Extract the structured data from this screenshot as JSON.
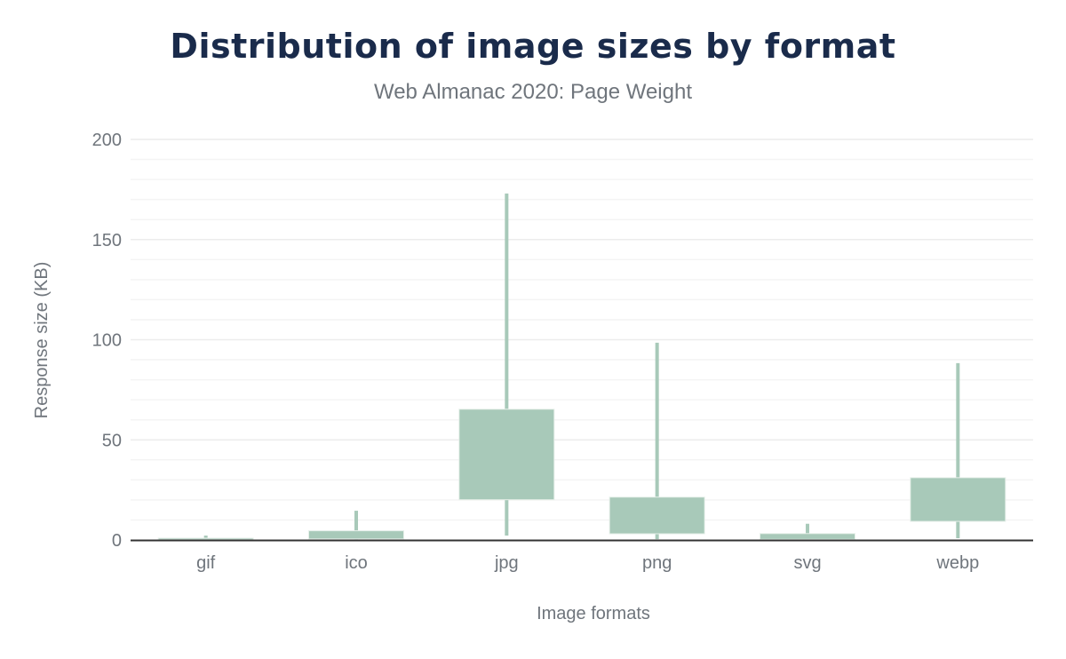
{
  "chart_data": {
    "type": "box",
    "title": "Distribution of image sizes by format",
    "subtitle": "Web Almanac 2020: Page Weight",
    "xlabel": "Image formats",
    "ylabel": "Response size (KB)",
    "ylim": [
      0,
      200
    ],
    "yticks": [
      "0",
      "50",
      "100",
      "150",
      "200"
    ],
    "grid": true,
    "color": "#a8c9b9",
    "categories": [
      "gif",
      "ico",
      "jpg",
      "png",
      "svg",
      "webp"
    ],
    "series": [
      {
        "category": "gif",
        "low": 0.1,
        "q1": 0.1,
        "q3": 0.9,
        "high": 2.2
      },
      {
        "category": "ico",
        "low": 0.3,
        "q1": 0.5,
        "q3": 4.6,
        "high": 14.6
      },
      {
        "category": "jpg",
        "low": 2.2,
        "q1": 20.1,
        "q3": 65.3,
        "high": 173
      },
      {
        "category": "png",
        "low": 0.4,
        "q1": 3.1,
        "q3": 21.4,
        "high": 98.5
      },
      {
        "category": "svg",
        "low": 0.2,
        "q1": 0.3,
        "q3": 3.2,
        "high": 8.1
      },
      {
        "category": "webp",
        "low": 0.9,
        "q1": 9.3,
        "q3": 31.1,
        "high": 88.3
      }
    ]
  }
}
